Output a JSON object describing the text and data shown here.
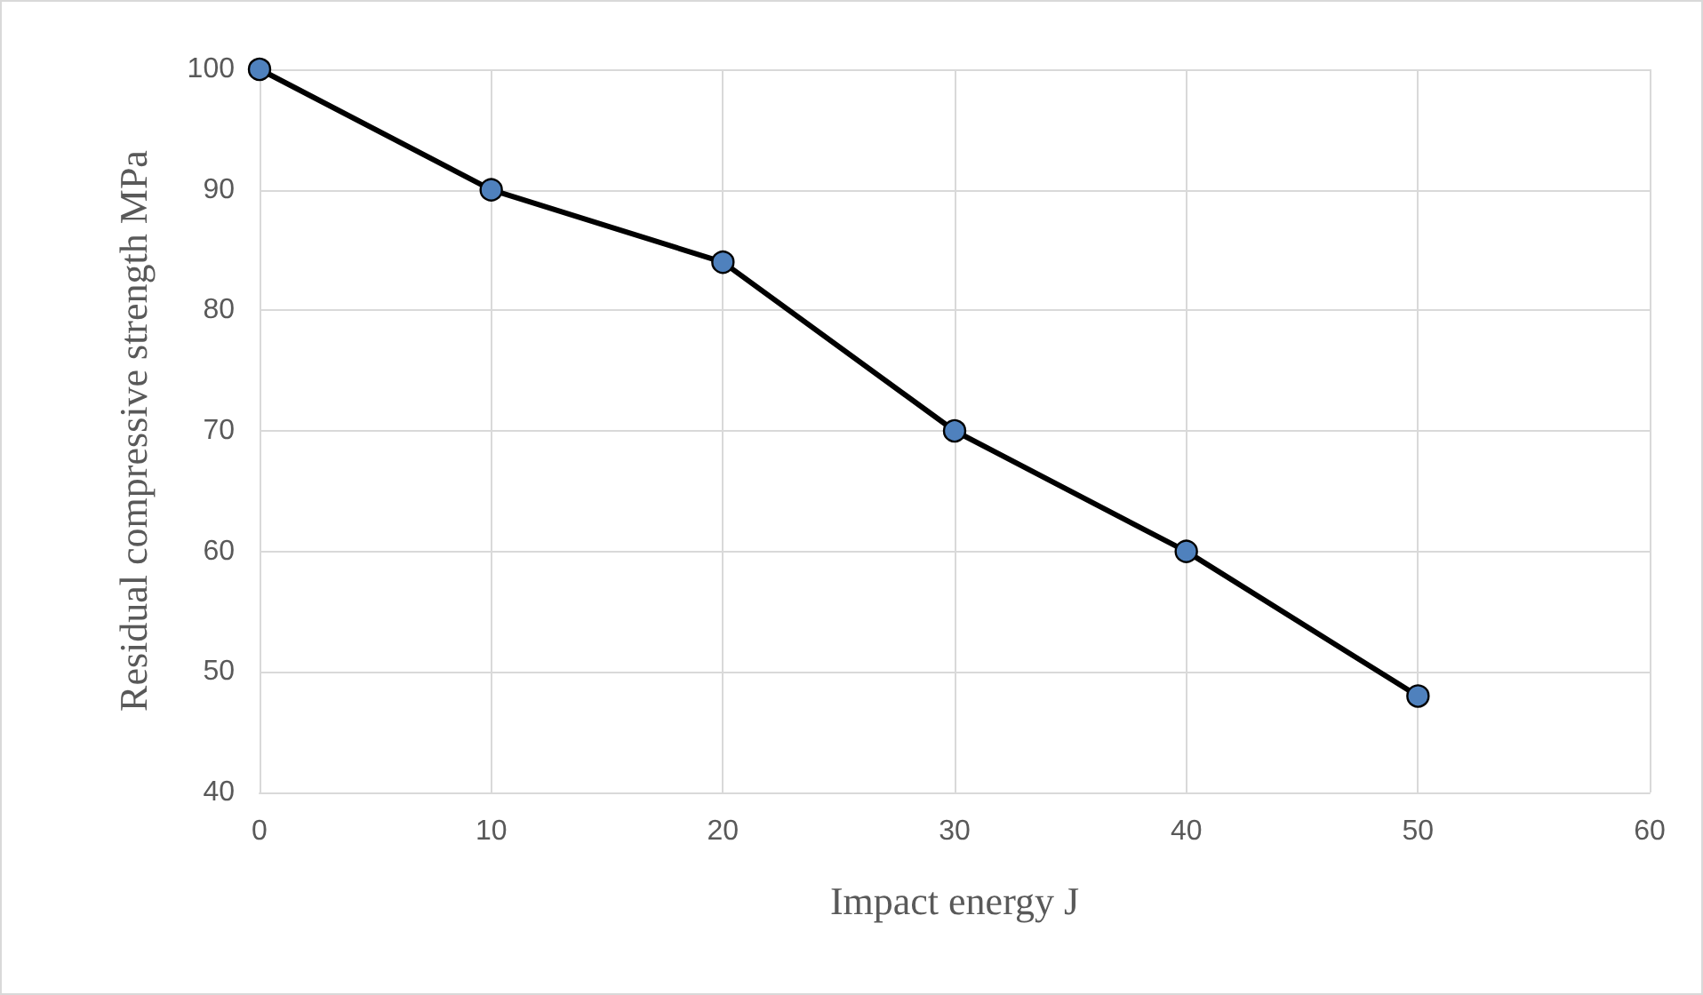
{
  "chart_data": {
    "type": "line",
    "xlabel": "Impact energy J",
    "ylabel": "Residual compressive strength MPa",
    "x": [
      0,
      10,
      20,
      30,
      40,
      50
    ],
    "series": [
      {
        "color": "#000000",
        "values": [
          100,
          90,
          84,
          70,
          60,
          48
        ]
      }
    ],
    "xlim": [
      0,
      60
    ],
    "xticks": [
      0,
      10,
      20,
      30,
      40,
      50,
      60
    ],
    "ylim": [
      40,
      100
    ],
    "yticks": [
      40,
      50,
      60,
      70,
      80,
      90,
      100
    ],
    "grid": true,
    "marker": "circle",
    "line_style": "solid"
  }
}
